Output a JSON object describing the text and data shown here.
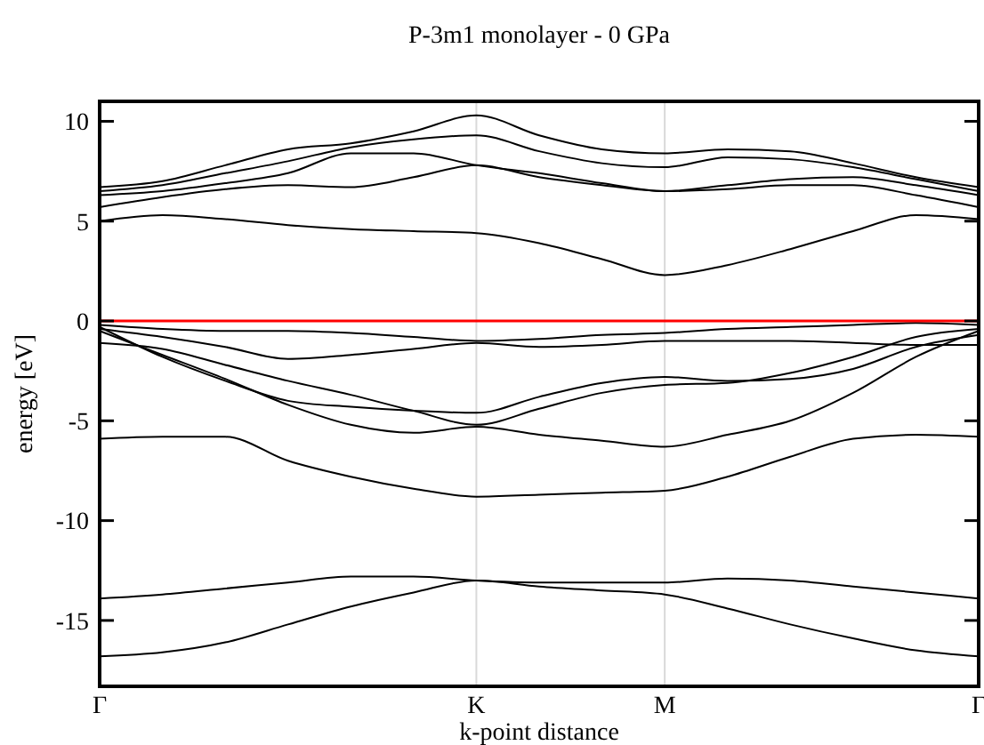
{
  "chart_data": {
    "type": "line",
    "title": "P-3m1 monolayer - 0 GPa",
    "xlabel": "k-point distance",
    "ylabel": "energy [eV]",
    "categories": [
      "Γ",
      null,
      null,
      null,
      null,
      null,
      "K",
      null,
      null,
      "M",
      null,
      null,
      null,
      null,
      "Γ"
    ],
    "ylim": [
      -18.3,
      11
    ],
    "yticks": [
      -15,
      -10,
      -5,
      0,
      5,
      10
    ],
    "grid": "x",
    "marker": "none",
    "line_style": "solid",
    "ref_lines": [
      {
        "axis": "y",
        "value": 0,
        "color": "#ff0000"
      }
    ],
    "series": [
      {
        "color": "#000000",
        "values": [
          6.7,
          7.0,
          7.8,
          8.6,
          8.9,
          9.5,
          10.3,
          9.3,
          8.6,
          8.4,
          8.6,
          8.5,
          7.9,
          7.2,
          6.7
        ]
      },
      {
        "color": "#000000",
        "values": [
          6.5,
          6.8,
          7.4,
          8.0,
          8.7,
          9.1,
          9.3,
          8.5,
          7.9,
          7.7,
          8.2,
          8.1,
          7.7,
          7.1,
          6.5
        ]
      },
      {
        "color": "#000000",
        "values": [
          6.3,
          6.5,
          6.9,
          7.4,
          8.4,
          8.4,
          7.8,
          7.4,
          6.9,
          6.5,
          6.8,
          7.1,
          7.2,
          6.8,
          6.3
        ]
      },
      {
        "color": "#000000",
        "values": [
          5.7,
          6.2,
          6.6,
          6.8,
          6.7,
          7.2,
          7.8,
          7.2,
          6.8,
          6.5,
          6.6,
          6.8,
          6.8,
          6.3,
          5.7
        ]
      },
      {
        "color": "#000000",
        "values": [
          5.0,
          5.3,
          5.1,
          4.8,
          4.6,
          4.5,
          4.4,
          3.9,
          3.1,
          2.3,
          2.8,
          3.6,
          4.5,
          5.3,
          5.1
        ]
      },
      {
        "color": "#000000",
        "values": [
          -0.2,
          -0.4,
          -0.5,
          -0.5,
          -0.6,
          -0.8,
          -1.0,
          -0.9,
          -0.7,
          -0.6,
          -0.4,
          -0.3,
          -0.2,
          -0.1,
          -0.2
        ]
      },
      {
        "color": "#000000",
        "values": [
          -0.4,
          -0.8,
          -1.3,
          -1.9,
          -1.7,
          -1.4,
          -1.1,
          -1.3,
          -1.2,
          -1.0,
          -1.0,
          -1.0,
          -1.1,
          -1.2,
          -1.2
        ]
      },
      {
        "color": "#000000",
        "values": [
          -0.3,
          -1.8,
          -3.0,
          -4.0,
          -4.3,
          -4.5,
          -4.6,
          -3.8,
          -3.1,
          -2.8,
          -3.0,
          -2.9,
          -2.4,
          -1.3,
          -0.7
        ]
      },
      {
        "color": "#000000",
        "values": [
          -1.1,
          -1.4,
          -2.2,
          -3.0,
          -3.7,
          -4.5,
          -5.2,
          -4.4,
          -3.6,
          -3.2,
          -3.1,
          -2.6,
          -1.8,
          -0.8,
          -0.4
        ]
      },
      {
        "color": "#000000",
        "values": [
          -0.5,
          -1.7,
          -2.9,
          -4.2,
          -5.2,
          -5.6,
          -5.3,
          -5.7,
          -6.0,
          -6.3,
          -5.7,
          -5.0,
          -3.6,
          -1.8,
          -0.5
        ]
      },
      {
        "color": "#000000",
        "values": [
          -5.9,
          -5.8,
          -5.8,
          -7.0,
          -7.8,
          -8.4,
          -8.8,
          -8.7,
          -8.6,
          -8.5,
          -7.8,
          -6.8,
          -5.9,
          -5.7,
          -5.8
        ]
      },
      {
        "color": "#000000",
        "values": [
          -13.9,
          -13.7,
          -13.4,
          -13.1,
          -12.8,
          -12.8,
          -13.0,
          -13.1,
          -13.1,
          -13.1,
          -12.9,
          -13.0,
          -13.3,
          -13.6,
          -13.9
        ]
      },
      {
        "color": "#000000",
        "values": [
          -16.8,
          -16.6,
          -16.1,
          -15.2,
          -14.3,
          -13.6,
          -13.0,
          -13.3,
          -13.5,
          -13.7,
          -14.4,
          -15.2,
          -15.9,
          -16.5,
          -16.8
        ]
      }
    ]
  }
}
